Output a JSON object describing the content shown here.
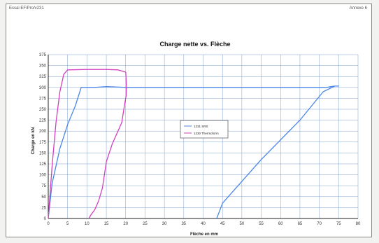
{
  "page": {
    "header_left": "Essai EF/Pro/v231",
    "header_right": "Annexe 6"
  },
  "colors": {
    "series_blue": "#4a86e8",
    "series_magenta": "#d23fbf",
    "grid": "#7f9fcf",
    "axis": "#222222"
  },
  "chart_data": {
    "type": "line",
    "title": "Charge nette vs. Flèche",
    "xlabel": "Flèche en mm",
    "ylabel": "Charge en kN",
    "xlim": [
      0,
      80
    ],
    "ylim": [
      0,
      375
    ],
    "xticks": [
      0,
      5,
      10,
      15,
      20,
      25,
      30,
      35,
      40,
      45,
      50,
      55,
      60,
      65,
      70,
      75,
      80
    ],
    "yticks": [
      0,
      25,
      50,
      75,
      100,
      125,
      150,
      175,
      200,
      225,
      250,
      275,
      300,
      325,
      350,
      375
    ],
    "grid": true,
    "legend_position": "center",
    "series": [
      {
        "name": "1231 SRS",
        "color": "#4a86e8",
        "x": [
          0,
          1,
          3,
          5,
          7,
          8.5,
          9,
          12,
          15,
          20,
          30,
          40,
          50,
          60,
          70,
          72,
          73,
          74,
          75,
          74,
          71,
          65,
          55,
          45,
          43.5
        ],
        "y": [
          0,
          80,
          160,
          215,
          258,
          300,
          300,
          300,
          302,
          300,
          300,
          300,
          300,
          300,
          300,
          300,
          302,
          303,
          303,
          303,
          290,
          225,
          135,
          35,
          0
        ]
      },
      {
        "name": "1230 Thermoform",
        "color": "#d23fbf",
        "x": [
          0,
          1,
          2,
          3,
          4,
          5,
          10,
          15,
          18,
          20,
          20.2,
          20.1,
          19.7,
          19,
          18,
          16.5,
          15,
          14,
          13,
          12,
          11,
          10.5
        ],
        "y": [
          0,
          120,
          220,
          290,
          330,
          340,
          341,
          341,
          340,
          335,
          300,
          280,
          260,
          220,
          200,
          170,
          130,
          70,
          40,
          20,
          8,
          0
        ]
      }
    ]
  }
}
